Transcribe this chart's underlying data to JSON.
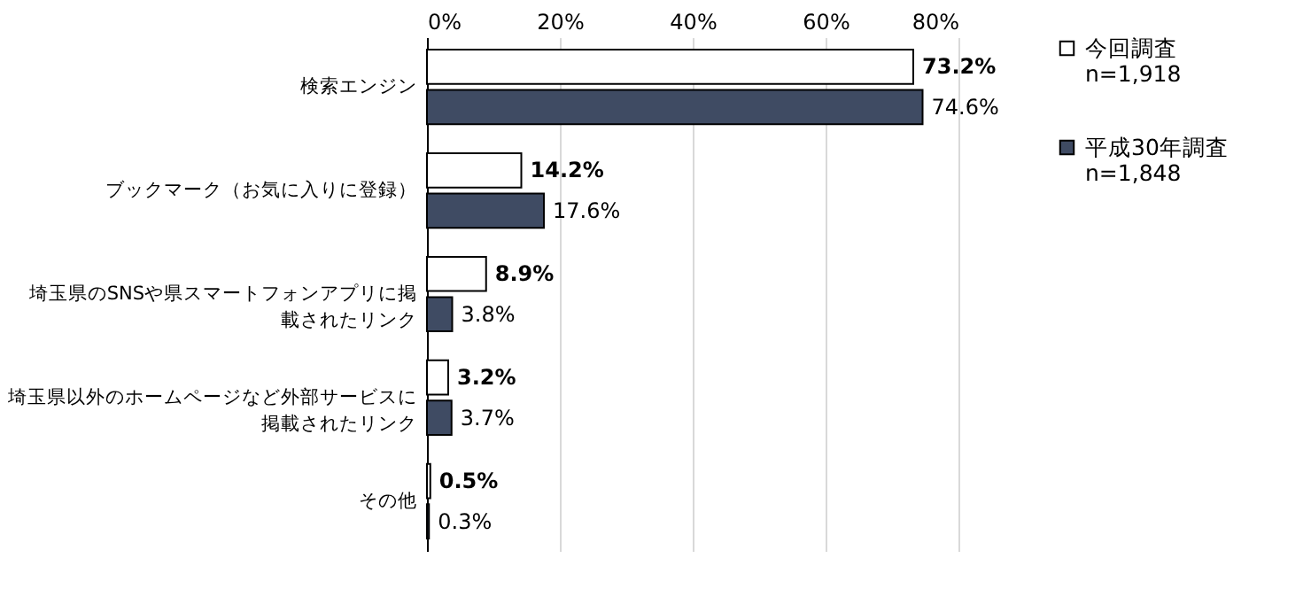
{
  "chart_data": {
    "type": "bar",
    "orientation": "horizontal",
    "categories": [
      "検索エンジン",
      "ブックマーク（お気に入りに登録）",
      "埼玉県のSNSや県スマートフォンアプリに掲載されたリンク",
      "埼玉県以外のホームページなど外部サービスに掲載されたリンク",
      "その他"
    ],
    "series": [
      {
        "name": "今回調査 n=1,918",
        "color": "#ffffff",
        "values": [
          73.2,
          14.2,
          8.9,
          3.2,
          0.5
        ],
        "value_labels": [
          "73.2%",
          "14.2%",
          "8.9%",
          "3.2%",
          "0.5%"
        ]
      },
      {
        "name": "平成30年調査 n=1,848",
        "color": "#3f4b63",
        "values": [
          74.6,
          17.6,
          3.8,
          3.7,
          0.3
        ],
        "value_labels": [
          "74.6%",
          "17.6%",
          "3.8%",
          "3.7%",
          "0.3%"
        ]
      }
    ],
    "xlim": [
      0,
      80
    ],
    "xticks": [
      {
        "value": 0,
        "label": "0%"
      },
      {
        "value": 20,
        "label": "20%"
      },
      {
        "value": 40,
        "label": "40%"
      },
      {
        "value": 60,
        "label": "60%"
      },
      {
        "value": 80,
        "label": "80%"
      }
    ],
    "grid": "x",
    "legend": "right"
  }
}
